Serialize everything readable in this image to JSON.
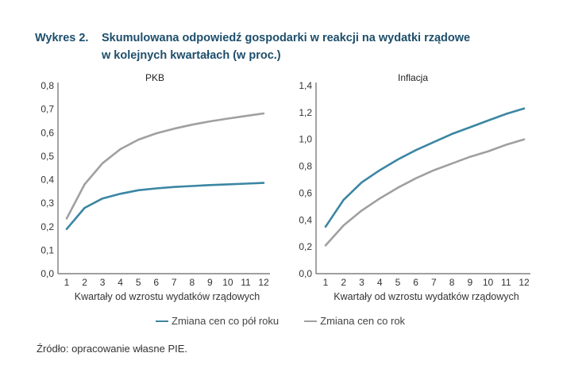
{
  "title": {
    "number": "Wykres 2.",
    "line1": "Skumulowana odpowiedź gospodarki w reakcji na wydatki rządowe",
    "line2": "w kolejnych kwartałach (w proc.)"
  },
  "colors": {
    "blue": "#3b86a3",
    "gray": "#a0a0a0",
    "axis": "#666666",
    "title": "#1d4e6b"
  },
  "legend": [
    {
      "label": "Zmiana cen co pół roku",
      "color": "#3b86a3"
    },
    {
      "label": "Zmiana cen co rok",
      "color": "#a0a0a0"
    }
  ],
  "source": "Źródło: opracowanie własne PIE.",
  "chart_data": [
    {
      "type": "line",
      "title": "PKB",
      "xlabel": "Kwartały od wzrostu wydatków rządowych",
      "ylabel": "",
      "x": [
        1,
        2,
        3,
        4,
        5,
        6,
        7,
        8,
        9,
        10,
        11,
        12
      ],
      "xticks": [
        "1",
        "2",
        "3",
        "4",
        "5",
        "6",
        "7",
        "8",
        "9",
        "10",
        "11",
        "12"
      ],
      "ylim": [
        0,
        0.8
      ],
      "yticks": [
        "0,0",
        "0,1",
        "0,2",
        "0,3",
        "0,4",
        "0,5",
        "0,6",
        "0,7",
        "0,8"
      ],
      "series": [
        {
          "name": "Zmiana cen co pół roku",
          "values": [
            0.19,
            0.28,
            0.32,
            0.34,
            0.355,
            0.363,
            0.369,
            0.373,
            0.377,
            0.38,
            0.383,
            0.386
          ]
        },
        {
          "name": "Zmiana cen co rok",
          "values": [
            0.235,
            0.38,
            0.47,
            0.53,
            0.57,
            0.597,
            0.617,
            0.634,
            0.648,
            0.66,
            0.671,
            0.682
          ]
        }
      ]
    },
    {
      "type": "line",
      "title": "Inflacja",
      "xlabel": "Kwartały od wzrostu wydatków rządowych",
      "ylabel": "",
      "x": [
        1,
        2,
        3,
        4,
        5,
        6,
        7,
        8,
        9,
        10,
        11,
        12
      ],
      "xticks": [
        "1",
        "2",
        "3",
        "4",
        "5",
        "6",
        "7",
        "8",
        "9",
        "10",
        "11",
        "12"
      ],
      "ylim": [
        0,
        1.4
      ],
      "yticks": [
        "0,0",
        "0,2",
        "0,4",
        "0,6",
        "0,8",
        "1,0",
        "1,2",
        "1,4"
      ],
      "series": [
        {
          "name": "Zmiana cen co pół roku",
          "values": [
            0.35,
            0.55,
            0.68,
            0.77,
            0.85,
            0.92,
            0.98,
            1.04,
            1.09,
            1.14,
            1.19,
            1.23
          ]
        },
        {
          "name": "Zmiana cen co rok",
          "values": [
            0.21,
            0.36,
            0.47,
            0.56,
            0.64,
            0.71,
            0.77,
            0.82,
            0.87,
            0.91,
            0.96,
            1.0
          ]
        }
      ]
    }
  ]
}
